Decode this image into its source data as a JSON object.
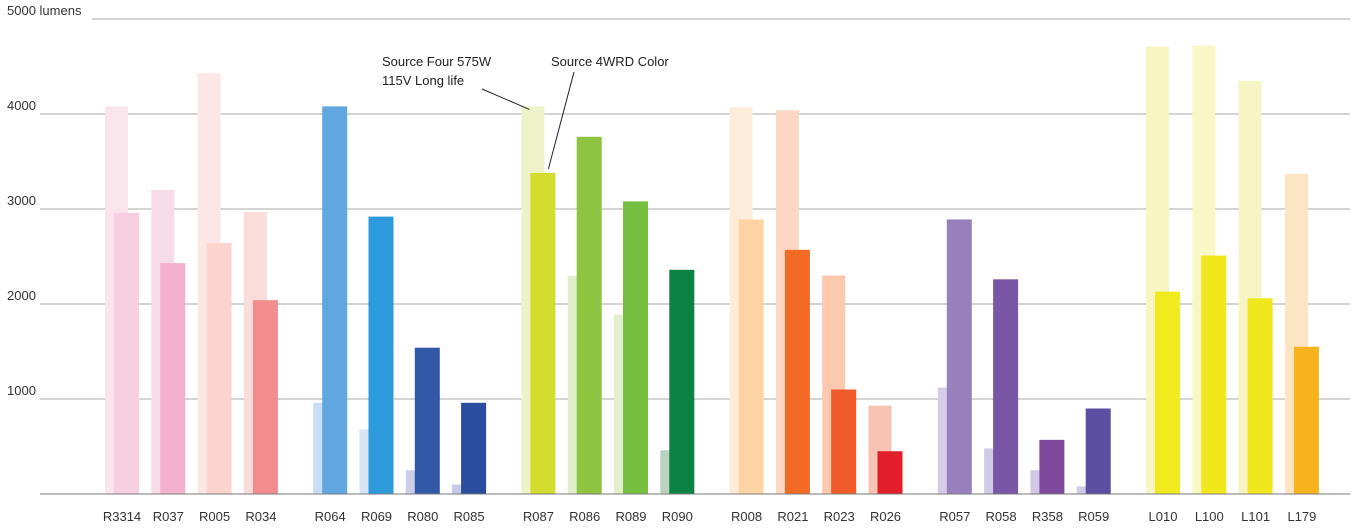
{
  "chart_data": {
    "type": "bar",
    "title": "",
    "xlabel": "",
    "ylabel": "",
    "ylim": [
      0,
      5000
    ],
    "grid": true,
    "y_ticks": [
      {
        "value": 1000,
        "label": "1000"
      },
      {
        "value": 2000,
        "label": "2000"
      },
      {
        "value": 3000,
        "label": "3000"
      },
      {
        "value": 4000,
        "label": "4000"
      },
      {
        "value": 5000,
        "label": "5000 lumens"
      }
    ],
    "groups": [
      {
        "categories": [
          "R3314",
          "R037",
          "R005",
          "R034"
        ]
      },
      {
        "categories": [
          "R064",
          "R069",
          "R080",
          "R085"
        ]
      },
      {
        "categories": [
          "R087",
          "R086",
          "R089",
          "R090"
        ]
      },
      {
        "categories": [
          "R008",
          "R021",
          "R023",
          "R026"
        ]
      },
      {
        "categories": [
          "R057",
          "R058",
          "R358",
          "R059"
        ]
      },
      {
        "categories": [
          "L010",
          "L100",
          "L101",
          "L179"
        ]
      }
    ],
    "categories": [
      "R3314",
      "R037",
      "R005",
      "R034",
      "R064",
      "R069",
      "R080",
      "R085",
      "R087",
      "R086",
      "R089",
      "R090",
      "R008",
      "R021",
      "R023",
      "R026",
      "R057",
      "R058",
      "R358",
      "R059",
      "L010",
      "L100",
      "L101",
      "L179"
    ],
    "series": [
      {
        "name": "Source Four 575W 115V Long life",
        "values": [
          4080,
          3200,
          4430,
          2970,
          960,
          680,
          250,
          100,
          4080,
          2300,
          1890,
          460,
          4070,
          4040,
          2300,
          930,
          1120,
          480,
          250,
          80,
          4710,
          4720,
          4350,
          3370
        ]
      },
      {
        "name": "Source 4WRD Color",
        "values": [
          2960,
          2430,
          2640,
          2040,
          4080,
          2920,
          1540,
          960,
          3380,
          3760,
          3080,
          2360,
          2890,
          2570,
          1100,
          450,
          2890,
          2260,
          570,
          900,
          2130,
          2510,
          2060,
          1550
        ]
      }
    ],
    "colors": {
      "light": [
        "#fbe5ec",
        "#f7dbe7",
        "#fde6e6",
        "#fadcd8",
        "#c9def4",
        "#d6e4f4",
        "#cbcde9",
        "#c6cae8",
        "#eef2c9",
        "#e1eecc",
        "#e3efcc",
        "#b9d3c3",
        "#fdecd9",
        "#fcd7c3",
        "#fcc8ae",
        "#f9c3b3",
        "#d6cce8",
        "#d0cae8",
        "#d2c8e6",
        "#cfcce9",
        "#f7f6c3",
        "#f8f7c5",
        "#f7f4c3",
        "#fde4c3"
      ],
      "dark": [
        "#f7cfe0",
        "#f4b0cd",
        "#fcd4ce",
        "#f18d8c",
        "#5fa7de",
        "#2d9adb",
        "#3258a8",
        "#2b4da0",
        "#d4dd2e",
        "#8fc440",
        "#76bf40",
        "#0b8443",
        "#fdd3a3",
        "#f26a24",
        "#f05a28",
        "#e11e2a",
        "#9880bc",
        "#7957a6",
        "#7f4a9e",
        "#5c4ea1",
        "#f0ea1e",
        "#f0e81c",
        "#f0e71e",
        "#f8b31d"
      ]
    },
    "annotations": [
      {
        "lines": [
          "Source Four 575W",
          "115V Long life"
        ],
        "series": "Source Four 575W 115V Long life"
      },
      {
        "lines": [
          "Source 4WRD Color"
        ],
        "series": "Source 4WRD Color"
      }
    ]
  }
}
